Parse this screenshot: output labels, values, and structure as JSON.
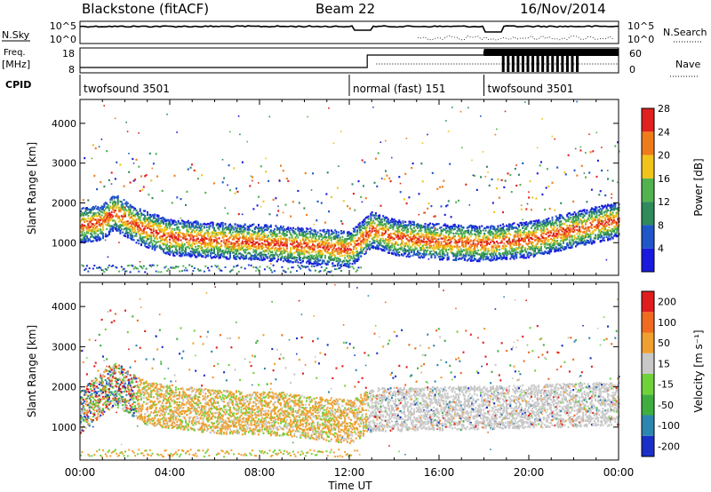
{
  "header": {
    "station": "Blackstone (fitACF)",
    "beam": "Beam 22",
    "date": "16/Nov/2014"
  },
  "strip": {
    "nsky_label": "N.Sky",
    "nsky_ticks": [
      "10^5",
      "10^0"
    ],
    "nsearch_label": "N.Search",
    "nsearch_ticks": [
      "10^5",
      "10^0"
    ],
    "freq_label": "Freq.",
    "freq_unit": "[MHz]",
    "freq_ticks": [
      "18",
      "8"
    ],
    "nave_label": "Nave",
    "nave_ticks": [
      "60",
      "0"
    ],
    "cpid_label": "CPID",
    "cpid_segments": [
      {
        "name": "twofsound 3501",
        "start_hour": 0.0,
        "end_hour": 12.0
      },
      {
        "name": "normal (fast) 151",
        "start_hour": 12.0,
        "end_hour": 18.0
      },
      {
        "name": "twofsound 3501",
        "start_hour": 18.0,
        "end_hour": 24.0
      }
    ]
  },
  "chart_data": [
    {
      "type": "heatmap",
      "title": "",
      "xlabel": "Time UT",
      "ylabel": "Slant Range [km]",
      "x_ticks": [
        "00:00",
        "04:00",
        "08:00",
        "12:00",
        "16:00",
        "20:00",
        "00:00"
      ],
      "x_range_hours": [
        0,
        24
      ],
      "y_ticks": [
        1000,
        2000,
        3000,
        4000
      ],
      "ylim": [
        180,
        4600
      ],
      "colorbar": {
        "label": "Power [dB]",
        "ticks": [
          "4",
          "8",
          "12",
          "16",
          "20",
          "24",
          "28"
        ],
        "colors": [
          "#1a1adf",
          "#1f56c8",
          "#2f8a5c",
          "#52b24e",
          "#f0c41a",
          "#f07b1a",
          "#e0211e"
        ]
      },
      "band": [
        {
          "hour": 0.0,
          "range_km": 1450
        },
        {
          "hour": 1.0,
          "range_km": 1550
        },
        {
          "hour": 1.5,
          "range_km": 1800
        },
        {
          "hour": 2.5,
          "range_km": 1450
        },
        {
          "hour": 4.0,
          "range_km": 1150
        },
        {
          "hour": 6.0,
          "range_km": 1080
        },
        {
          "hour": 8.0,
          "range_km": 1030
        },
        {
          "hour": 10.0,
          "range_km": 950
        },
        {
          "hour": 12.0,
          "range_km": 850
        },
        {
          "hour": 13.0,
          "range_km": 1350
        },
        {
          "hour": 14.0,
          "range_km": 1150
        },
        {
          "hour": 16.0,
          "range_km": 1050
        },
        {
          "hour": 18.0,
          "range_km": 1000
        },
        {
          "hour": 20.0,
          "range_km": 1100
        },
        {
          "hour": 22.0,
          "range_km": 1350
        },
        {
          "hour": 24.0,
          "range_km": 1600
        }
      ]
    },
    {
      "type": "heatmap",
      "title": "",
      "xlabel": "Time UT",
      "ylabel": "Slant Range [km]",
      "x_ticks": [
        "00:00",
        "04:00",
        "08:00",
        "12:00",
        "16:00",
        "20:00",
        "00:00"
      ],
      "x_range_hours": [
        0,
        24
      ],
      "y_ticks": [
        1000,
        2000,
        3000,
        4000
      ],
      "ylim": [
        180,
        4600
      ],
      "colorbar": {
        "label": "Velocity [m s⁻¹]",
        "ticks": [
          "200",
          "100",
          "50",
          "15",
          "-15",
          "-50",
          "-100",
          "-200"
        ],
        "colors": [
          "#1a2fc8",
          "#2c86b0",
          "#3fae3f",
          "#6fd23a",
          "#c8c8c8",
          "#f0a030",
          "#f06a20",
          "#e01d1d"
        ]
      },
      "band": [
        {
          "hour": 0.0,
          "range_km": 1400
        },
        {
          "hour": 1.5,
          "range_km": 2100
        },
        {
          "hour": 3.0,
          "range_km": 1600
        },
        {
          "hour": 6.0,
          "range_km": 1400
        },
        {
          "hour": 9.0,
          "range_km": 1350
        },
        {
          "hour": 12.0,
          "range_km": 1150
        },
        {
          "hour": 13.0,
          "range_km": 1450
        },
        {
          "hour": 18.0,
          "range_km": 1500
        },
        {
          "hour": 24.0,
          "range_km": 1600
        }
      ]
    }
  ]
}
